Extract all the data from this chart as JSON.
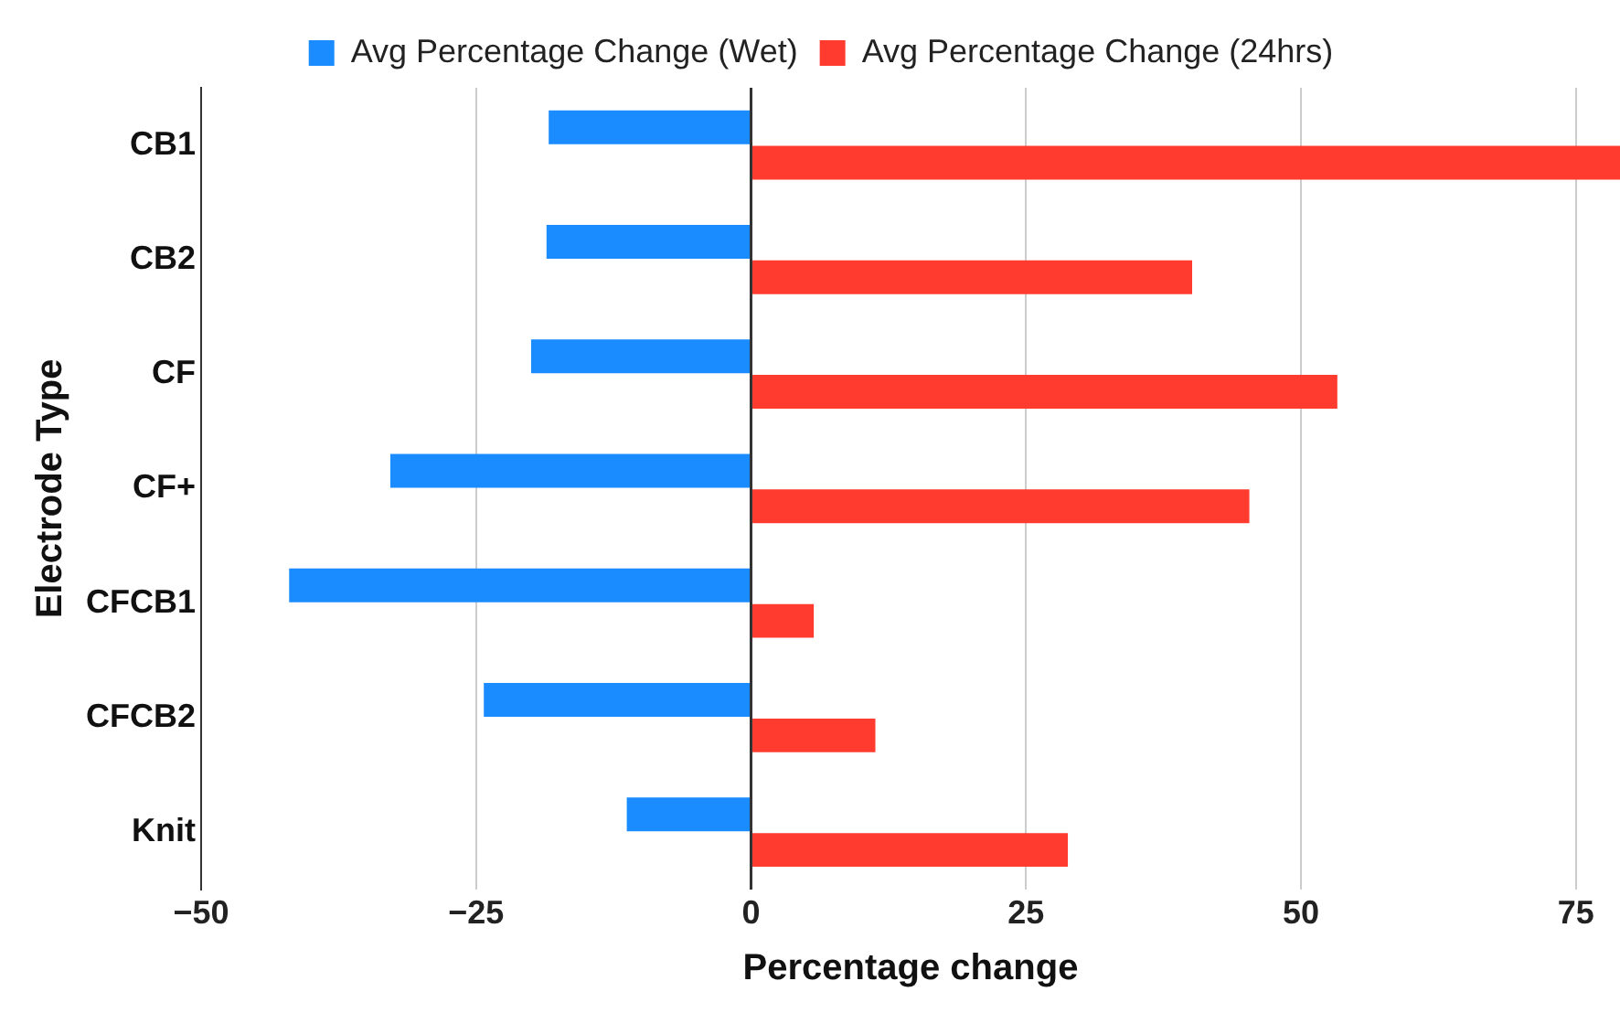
{
  "chart_data": {
    "type": "bar",
    "orientation": "horizontal",
    "xlabel": "Percentage change",
    "ylabel": "Electrode Type",
    "categories": [
      "CB1",
      "CB2",
      "CF",
      "CF+",
      "CFCB1",
      "CFCB2",
      "Knit"
    ],
    "series": [
      {
        "name": "Avg Percentage Change (Wet)",
        "color": "#1a8cff",
        "values": [
          -18.4,
          -18.6,
          -20,
          -32.8,
          -42,
          -24.3,
          -11.3
        ]
      },
      {
        "name": "Avg Percentage Change (24hrs)",
        "color": "#ff3b30",
        "values": [
          79,
          40.1,
          53.3,
          45.3,
          5.7,
          11.3,
          28.8
        ]
      }
    ],
    "xlim": [
      -50,
      79
    ],
    "xticks": [
      {
        "value": -50,
        "label": "−50"
      },
      {
        "value": -25,
        "label": "−25"
      },
      0,
      25,
      50,
      75
    ],
    "grid": "x",
    "legend": "top"
  }
}
